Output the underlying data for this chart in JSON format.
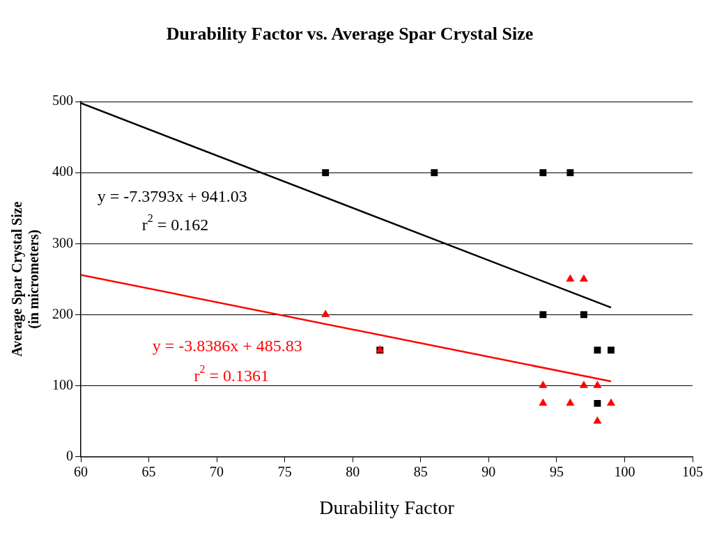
{
  "chart_data": {
    "type": "scatter",
    "title": "Durability Factor vs. Average Spar Crystal Size",
    "xlabel": "Durability Factor",
    "ylabel": "Average Spar Crystal Size\n(in micrometers)",
    "xlim": [
      60,
      105
    ],
    "xticks": [
      60,
      65,
      70,
      75,
      80,
      85,
      90,
      95,
      100,
      105
    ],
    "ylim": [
      0,
      500
    ],
    "yticks": [
      0,
      100,
      200,
      300,
      400,
      500
    ],
    "grid": "y",
    "legend": false,
    "series": [
      {
        "type": "scatter",
        "marker": "square",
        "color": "#000000",
        "x": [
          78,
          86,
          94,
          96,
          94,
          97,
          82,
          98,
          99,
          98
        ],
        "values": [
          400,
          400,
          400,
          400,
          200,
          200,
          150,
          150,
          150,
          75
        ]
      },
      {
        "type": "scatter",
        "marker": "triangle",
        "color": "#ff0000",
        "x": [
          78,
          82,
          96,
          97,
          94,
          97,
          98,
          94,
          96,
          99,
          98
        ],
        "values": [
          200,
          150,
          250,
          250,
          100,
          100,
          100,
          75,
          75,
          75,
          50
        ]
      },
      {
        "type": "line",
        "marker": "none",
        "color": "#000000",
        "x": [
          60,
          99
        ],
        "values": [
          498,
          210
        ]
      },
      {
        "type": "line",
        "marker": "none",
        "color": "#ff0000",
        "x": [
          60,
          99
        ],
        "values": [
          256,
          106
        ]
      }
    ],
    "annotations": [
      "y = -7.3793x + 941.03",
      "r$^{2}$ = 0.162",
      "y = -3.8386x + 485.83",
      "r$^{2}$ = 0.1361"
    ]
  }
}
